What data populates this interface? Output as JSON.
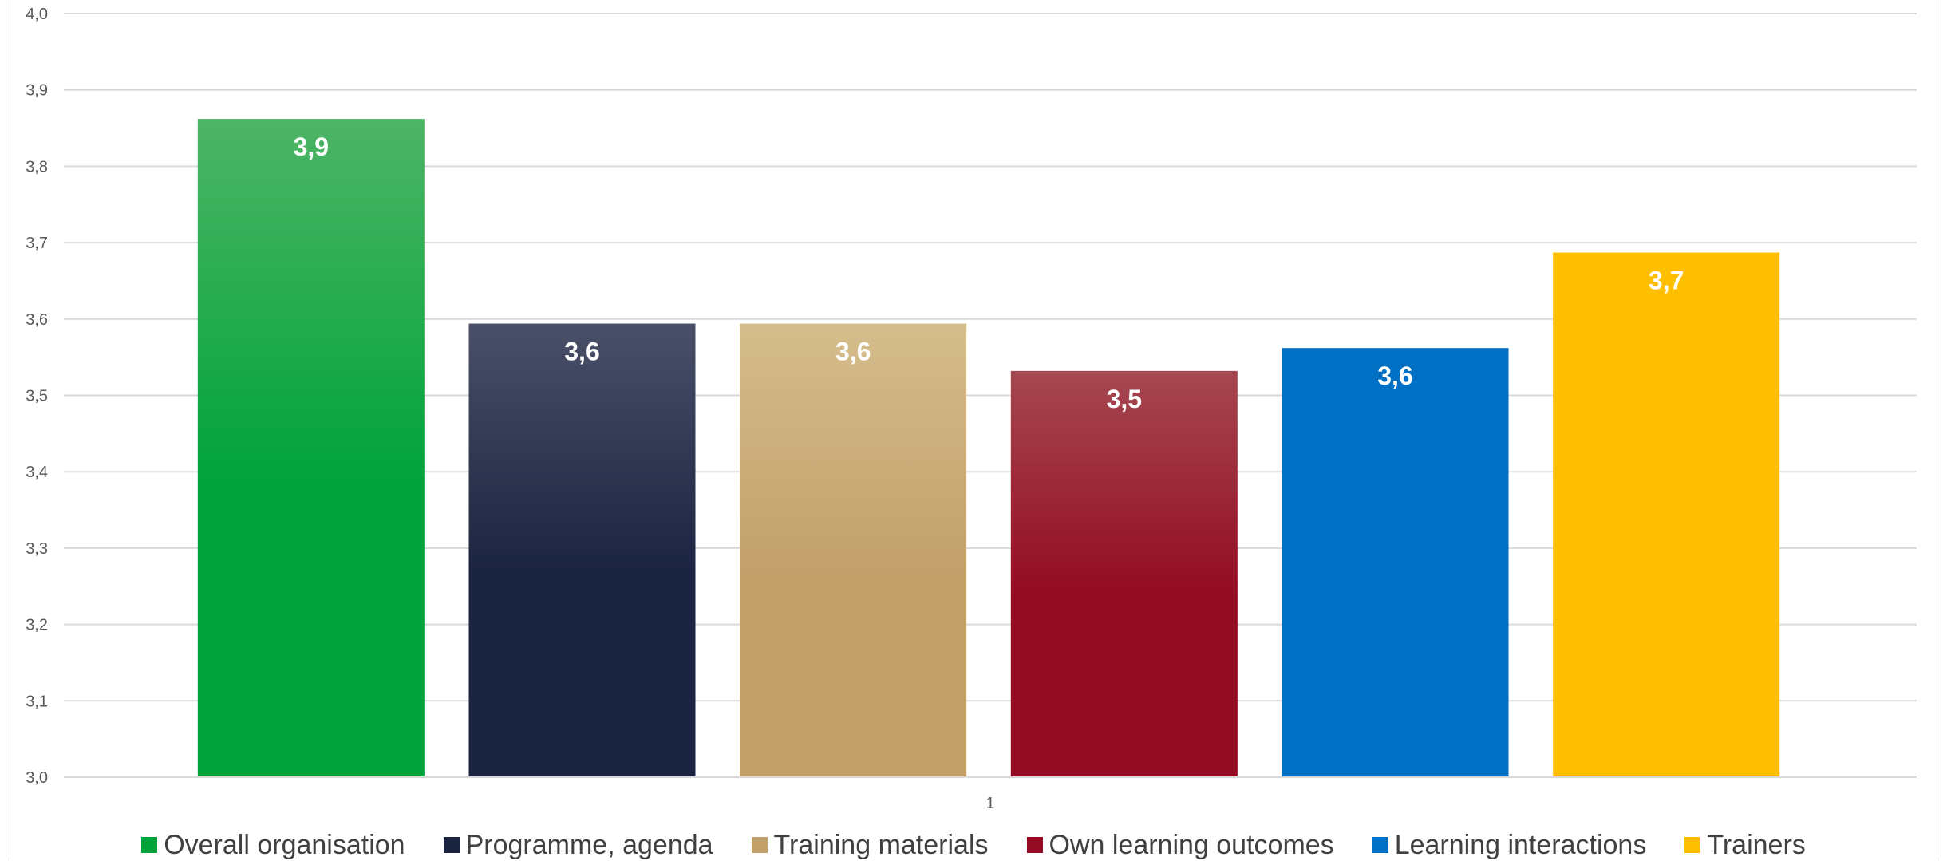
{
  "chart_data": {
    "type": "bar",
    "x_tick_labels": [
      "1"
    ],
    "y_ticks": [
      "3,0",
      "3,1",
      "3,2",
      "3,3",
      "3,4",
      "3,5",
      "3,6",
      "3,7",
      "3,8",
      "3,9",
      "4,0"
    ],
    "ylim": [
      3.0,
      4.0
    ],
    "grid": true,
    "legend_position": "bottom",
    "series": [
      {
        "name": "Overall organisation",
        "value": 3.862,
        "label": "3,9",
        "color": "#00a33b",
        "color_top": "#4db566"
      },
      {
        "name": "Programme, agenda",
        "value": 3.594,
        "label": "3,6",
        "color": "#1a2340",
        "color_top": "#4a5068"
      },
      {
        "name": "Training materials",
        "value": 3.594,
        "label": "3,6",
        "color": "#c2a06a",
        "color_top": "#d5bd8c"
      },
      {
        "name": "Own learning outcomes",
        "value": 3.532,
        "label": "3,5",
        "color": "#930b22",
        "color_top": "#a64852"
      },
      {
        "name": "Learning interactions",
        "value": 3.562,
        "label": "3,6",
        "color": "#0070c4",
        "color_top": "#0070c4"
      },
      {
        "name": "Trainers",
        "value": 3.687,
        "label": "3,7",
        "color": "#fdbf00",
        "color_top": "#fdbf00"
      }
    ]
  }
}
